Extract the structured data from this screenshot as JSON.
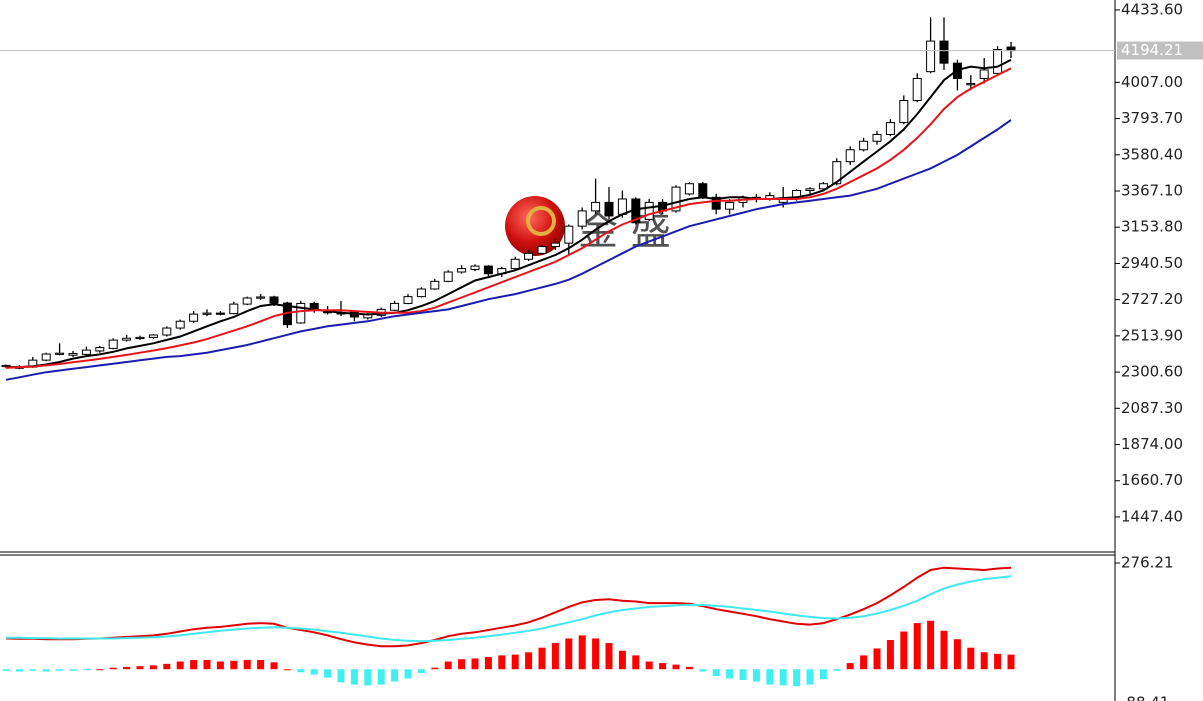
{
  "chart_data": [
    {
      "type": "candlestick",
      "open": [
        2336,
        2330,
        2330,
        2371,
        2407,
        2400,
        2405,
        2425,
        2440,
        2489,
        2500,
        2505,
        2519,
        2560,
        2600,
        2642,
        2648,
        2645,
        2701,
        2737,
        2743,
        2707,
        2590,
        2705,
        2660,
        2650,
        2655,
        2620,
        2635,
        2665,
        2705,
        2745,
        2790,
        2835,
        2890,
        2905,
        2925,
        2880,
        2910,
        2965,
        3000,
        3040,
        3060,
        3160,
        3250,
        3300,
        3230,
        3320,
        3200,
        3300,
        3250,
        3350,
        3410,
        3330,
        3260,
        3300,
        3330,
        3320,
        3300,
        3320,
        3370,
        3380,
        3410,
        3540,
        3610,
        3660,
        3700,
        3770,
        3900,
        4070,
        4250,
        4120,
        4000,
        4030,
        4060,
        4215
      ],
      "high": [
        2345,
        2340,
        2390,
        2415,
        2470,
        2425,
        2450,
        2455,
        2500,
        2520,
        2515,
        2525,
        2570,
        2610,
        2660,
        2670,
        2660,
        2715,
        2745,
        2760,
        2750,
        2715,
        2720,
        2715,
        2690,
        2720,
        2665,
        2650,
        2680,
        2720,
        2760,
        2800,
        2850,
        2900,
        2930,
        2935,
        2930,
        2920,
        2980,
        3020,
        3050,
        3090,
        3170,
        3270,
        3440,
        3390,
        3370,
        3330,
        3320,
        3320,
        3400,
        3420,
        3420,
        3350,
        3320,
        3340,
        3350,
        3360,
        3390,
        3380,
        3390,
        3420,
        3560,
        3630,
        3680,
        3720,
        3790,
        3930,
        4060,
        4390,
        4390,
        4140,
        4050,
        4150,
        4220,
        4245
      ],
      "low": [
        2325,
        2318,
        2325,
        2365,
        2400,
        2390,
        2398,
        2415,
        2435,
        2480,
        2490,
        2495,
        2510,
        2550,
        2590,
        2630,
        2635,
        2640,
        2695,
        2725,
        2690,
        2560,
        2585,
        2650,
        2640,
        2630,
        2600,
        2610,
        2625,
        2660,
        2700,
        2740,
        2785,
        2830,
        2880,
        2895,
        2865,
        2860,
        2905,
        2955,
        2990,
        3020,
        2990,
        3140,
        3230,
        3200,
        3210,
        3170,
        3190,
        3230,
        3240,
        3340,
        3320,
        3230,
        3230,
        3270,
        3300,
        3310,
        3270,
        3310,
        3340,
        3370,
        3400,
        3520,
        3600,
        3640,
        3690,
        3760,
        3890,
        4060,
        4080,
        3960,
        3960,
        4000,
        4050,
        4150
      ],
      "close": [
        2340,
        2326,
        2371,
        2407,
        2412,
        2410,
        2430,
        2445,
        2489,
        2500,
        2505,
        2519,
        2560,
        2600,
        2642,
        2648,
        2645,
        2701,
        2737,
        2743,
        2707,
        2580,
        2705,
        2670,
        2650,
        2645,
        2625,
        2640,
        2670,
        2705,
        2745,
        2790,
        2835,
        2890,
        2910,
        2925,
        2880,
        2910,
        2965,
        3000,
        3040,
        3060,
        3160,
        3250,
        3300,
        3220,
        3320,
        3180,
        3300,
        3250,
        3390,
        3410,
        3330,
        3260,
        3300,
        3330,
        3320,
        3340,
        3320,
        3370,
        3380,
        3410,
        3540,
        3610,
        3660,
        3700,
        3770,
        3900,
        4030,
        4250,
        4120,
        4030,
        4000,
        4080,
        4200,
        4194
      ],
      "up_color": "#ffffff",
      "down_color": "#000000",
      "outline_color": "#000000",
      "series": [
        {
          "color": "#000000",
          "values": [
            2330,
            2330,
            2335,
            2345,
            2360,
            2380,
            2395,
            2405,
            2420,
            2440,
            2455,
            2470,
            2490,
            2510,
            2540,
            2570,
            2600,
            2625,
            2660,
            2690,
            2700,
            2690,
            2680,
            2670,
            2660,
            2650,
            2645,
            2640,
            2645,
            2650,
            2665,
            2690,
            2720,
            2760,
            2800,
            2840,
            2860,
            2880,
            2900,
            2930,
            2960,
            2990,
            3030,
            3080,
            3140,
            3190,
            3230,
            3260,
            3270,
            3280,
            3300,
            3320,
            3330,
            3320,
            3330,
            3330,
            3320,
            3320,
            3325,
            3330,
            3345,
            3370,
            3420,
            3480,
            3540,
            3600,
            3660,
            3730,
            3820,
            3920,
            4020,
            4080,
            4100,
            4090,
            4100,
            4140
          ]
        },
        {
          "color": "#e8141c",
          "values": [
            2325,
            2330,
            2333,
            2340,
            2348,
            2358,
            2368,
            2378,
            2390,
            2402,
            2415,
            2428,
            2442,
            2458,
            2475,
            2495,
            2520,
            2545,
            2570,
            2600,
            2630,
            2650,
            2660,
            2665,
            2665,
            2665,
            2660,
            2655,
            2650,
            2650,
            2650,
            2660,
            2680,
            2710,
            2740,
            2770,
            2800,
            2830,
            2860,
            2890,
            2920,
            2950,
            2990,
            3030,
            3080,
            3130,
            3170,
            3200,
            3230,
            3250,
            3270,
            3290,
            3300,
            3310,
            3310,
            3315,
            3320,
            3320,
            3320,
            3320,
            3330,
            3350,
            3380,
            3420,
            3460,
            3500,
            3550,
            3610,
            3680,
            3760,
            3850,
            3920,
            3970,
            4010,
            4050,
            4090
          ]
        },
        {
          "color": "#1c1cb0",
          "values": [
            2255,
            2270,
            2285,
            2300,
            2310,
            2320,
            2330,
            2340,
            2350,
            2360,
            2370,
            2380,
            2390,
            2395,
            2405,
            2415,
            2430,
            2445,
            2460,
            2480,
            2500,
            2520,
            2540,
            2555,
            2570,
            2580,
            2590,
            2600,
            2615,
            2630,
            2640,
            2650,
            2660,
            2670,
            2690,
            2710,
            2730,
            2745,
            2760,
            2780,
            2800,
            2820,
            2845,
            2880,
            2920,
            2960,
            3000,
            3040,
            3070,
            3100,
            3130,
            3160,
            3180,
            3200,
            3220,
            3240,
            3260,
            3275,
            3290,
            3300,
            3310,
            3320,
            3330,
            3340,
            3360,
            3380,
            3410,
            3440,
            3470,
            3500,
            3540,
            3580,
            3630,
            3680,
            3730,
            3785
          ]
        }
      ],
      "ylim": [
        1241,
        4492
      ],
      "yticks": [
        {
          "value": 4433.6,
          "label": "4433.60"
        },
        {
          "value": 4007.0,
          "label": "4007.00"
        },
        {
          "value": 3793.7,
          "label": "3793.70"
        },
        {
          "value": 3580.4,
          "label": "3580.40"
        },
        {
          "value": 3367.1,
          "label": "3367.10"
        },
        {
          "value": 3153.8,
          "label": "3153.80"
        },
        {
          "value": 2940.5,
          "label": "2940.50"
        },
        {
          "value": 2727.2,
          "label": "2727.20"
        },
        {
          "value": 2513.9,
          "label": "2513.90"
        },
        {
          "value": 2300.6,
          "label": "2300.60"
        },
        {
          "value": 2087.3,
          "label": "2087.30"
        },
        {
          "value": 1874.0,
          "label": "1874.00"
        },
        {
          "value": 1660.7,
          "label": "1660.70"
        },
        {
          "value": 1447.4,
          "label": "1447.40"
        }
      ],
      "last_price": 4194.21,
      "watermark": "金 盛"
    },
    {
      "type": "macd",
      "series": [
        {
          "color": "#e00000",
          "values": [
            80,
            79,
            79,
            78,
            78,
            78,
            79,
            80,
            82,
            84,
            86,
            88,
            92,
            98,
            104,
            108,
            110,
            114,
            118,
            120,
            118,
            108,
            102,
            96,
            88,
            78,
            70,
            64,
            60,
            60,
            62,
            68,
            76,
            86,
            92,
            96,
            102,
            108,
            114,
            122,
            134,
            148,
            162,
            174,
            180,
            182,
            178,
            176,
            172,
            172,
            172,
            170,
            164,
            156,
            150,
            144,
            138,
            130,
            124,
            118,
            116,
            120,
            130,
            142,
            156,
            172,
            192,
            214,
            238,
            258,
            264,
            262,
            260,
            258,
            262,
            264
          ]
        },
        {
          "color": "#40e8f0",
          "values": [
            82,
            82,
            81,
            81,
            80,
            80,
            80,
            80,
            80,
            81,
            82,
            83,
            85,
            88,
            92,
            96,
            100,
            103,
            106,
            108,
            109,
            108,
            106,
            103,
            99,
            95,
            90,
            85,
            80,
            76,
            74,
            73,
            74,
            76,
            79,
            82,
            86,
            90,
            95,
            100,
            106,
            114,
            122,
            130,
            140,
            148,
            154,
            158,
            162,
            164,
            166,
            167,
            167,
            165,
            162,
            158,
            154,
            150,
            145,
            140,
            136,
            133,
            132,
            134,
            138,
            145,
            154,
            165,
            178,
            195,
            210,
            220,
            228,
            234,
            238,
            242
          ]
        }
      ],
      "histogram": [
        -4,
        -6,
        -4,
        -6,
        -4,
        -4,
        -2,
        0,
        4,
        6,
        8,
        10,
        14,
        20,
        24,
        24,
        20,
        22,
        24,
        24,
        18,
        0,
        -8,
        -14,
        -22,
        -34,
        -40,
        -42,
        -40,
        -32,
        -24,
        -10,
        4,
        20,
        26,
        28,
        32,
        36,
        38,
        44,
        56,
        68,
        80,
        88,
        80,
        68,
        48,
        36,
        20,
        16,
        12,
        6,
        -6,
        -18,
        -24,
        -28,
        -32,
        -40,
        -42,
        -44,
        -40,
        -26,
        -4,
        16,
        36,
        54,
        76,
        98,
        120,
        126,
        100,
        78,
        56,
        44,
        40,
        38
      ],
      "up_color": "#ff0000",
      "down_color": "#40f0f0",
      "ylim": [
        -80,
        297
      ],
      "yticks": [
        276.21,
        -88.41
      ]
    }
  ]
}
